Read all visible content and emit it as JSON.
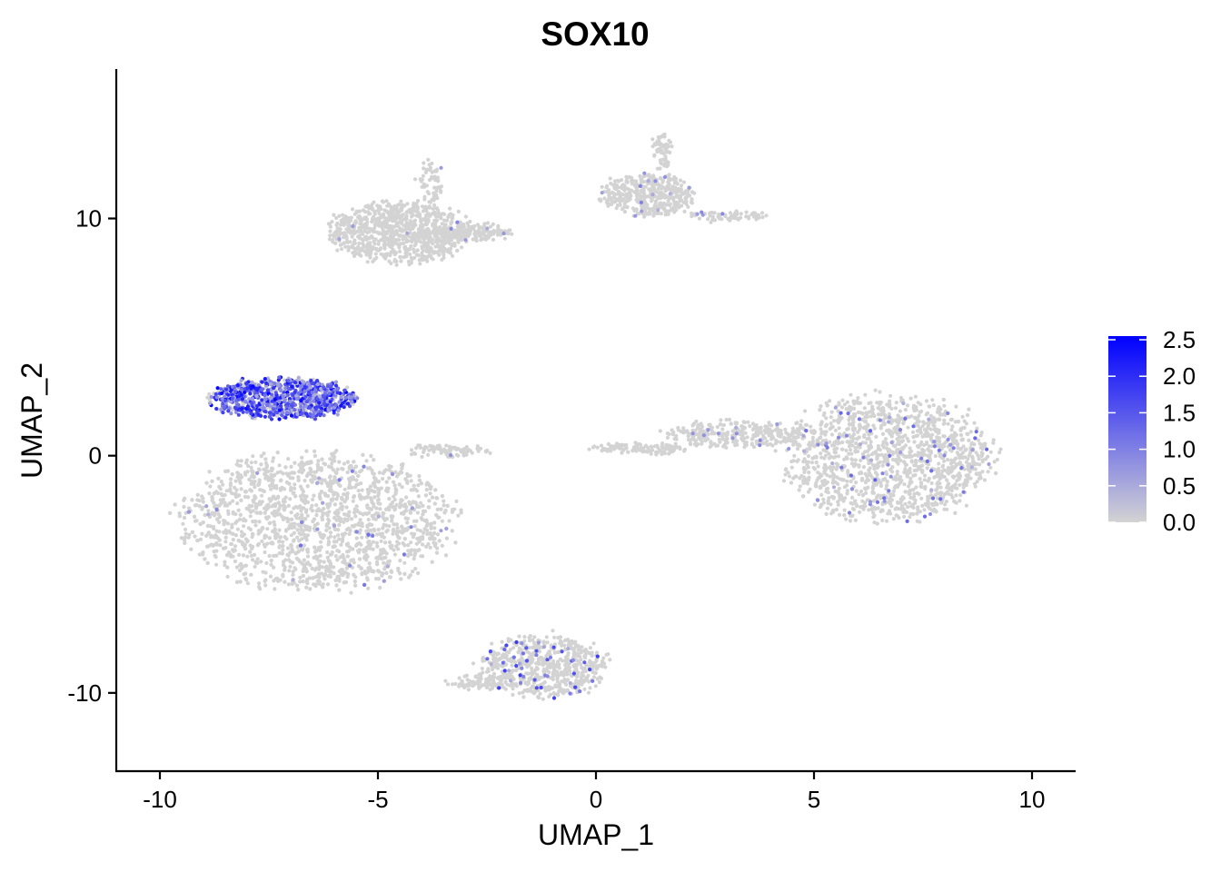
{
  "chart_data": {
    "type": "scatter",
    "title": "SOX10",
    "xlabel": "UMAP_1",
    "ylabel": "UMAP_2",
    "xlim": [
      -11,
      11
    ],
    "ylim": [
      -13.3,
      16.3
    ],
    "x_ticks": [
      -10,
      -5,
      0,
      5,
      10
    ],
    "x_tick_labels": [
      "-10",
      "-5",
      "0",
      "5",
      "10"
    ],
    "y_ticks": [
      -10,
      0,
      10
    ],
    "y_tick_labels": [
      "-10",
      "0",
      "10"
    ],
    "grid": false,
    "legend": {
      "position": "right",
      "kind": "colorbar",
      "min": 0.0,
      "max": 2.55,
      "ticks": [
        0.0,
        0.5,
        1.0,
        1.5,
        2.0,
        2.5
      ],
      "tick_labels": [
        "0.0",
        "0.5",
        "1.0",
        "1.5",
        "2.0",
        "2.5"
      ],
      "color_low": "#d3d3d3",
      "color_high": "#0000ff"
    },
    "clusters": [
      {
        "cx": -6.4,
        "cy": -2.8,
        "rx": 3.1,
        "ry": 2.9,
        "n": 2600,
        "expr_frac": 0.015,
        "expr_max": 1.2
      },
      {
        "cx": -7.2,
        "cy": 2.4,
        "rx": 1.7,
        "ry": 0.85,
        "n": 900,
        "expr_frac": 0.75,
        "expr_max": 2.5
      },
      {
        "cx": -4.5,
        "cy": 9.4,
        "rx": 1.6,
        "ry": 1.3,
        "n": 900,
        "expr_frac": 0.01,
        "expr_max": 1.0
      },
      {
        "cx": -2.8,
        "cy": 9.4,
        "rx": 0.9,
        "ry": 0.35,
        "n": 160,
        "expr_frac": 0.02,
        "expr_max": 1.0
      },
      {
        "cx": -3.8,
        "cy": 11.4,
        "rx": 0.25,
        "ry": 1.0,
        "n": 60,
        "expr_frac": 0.05,
        "expr_max": 1.0
      },
      {
        "cx": 1.2,
        "cy": 11.0,
        "rx": 1.1,
        "ry": 0.9,
        "n": 450,
        "expr_frac": 0.02,
        "expr_max": 1.0
      },
      {
        "cx": 1.5,
        "cy": 12.8,
        "rx": 0.2,
        "ry": 0.8,
        "n": 60,
        "expr_frac": 0.0,
        "expr_max": 0.5
      },
      {
        "cx": 3.0,
        "cy": 10.1,
        "rx": 0.9,
        "ry": 0.25,
        "n": 70,
        "expr_frac": 0.05,
        "expr_max": 1.0
      },
      {
        "cx": 6.7,
        "cy": -0.1,
        "rx": 2.4,
        "ry": 2.7,
        "n": 1700,
        "expr_frac": 0.05,
        "expr_max": 1.4
      },
      {
        "cx": 3.2,
        "cy": 0.9,
        "rx": 1.6,
        "ry": 0.55,
        "n": 300,
        "expr_frac": 0.03,
        "expr_max": 1.0
      },
      {
        "cx": 1.0,
        "cy": 0.3,
        "rx": 1.2,
        "ry": 0.2,
        "n": 110,
        "expr_frac": 0.0,
        "expr_max": 0.5
      },
      {
        "cx": -1.2,
        "cy": -8.9,
        "rx": 1.5,
        "ry": 1.3,
        "n": 650,
        "expr_frac": 0.08,
        "expr_max": 2.0
      },
      {
        "cx": -2.7,
        "cy": -9.6,
        "rx": 0.7,
        "ry": 0.25,
        "n": 70,
        "expr_frac": 0.0,
        "expr_max": 0.5
      },
      {
        "cx": -3.4,
        "cy": 0.2,
        "rx": 1.0,
        "ry": 0.25,
        "n": 90,
        "expr_frac": 0.02,
        "expr_max": 1.0
      }
    ]
  }
}
